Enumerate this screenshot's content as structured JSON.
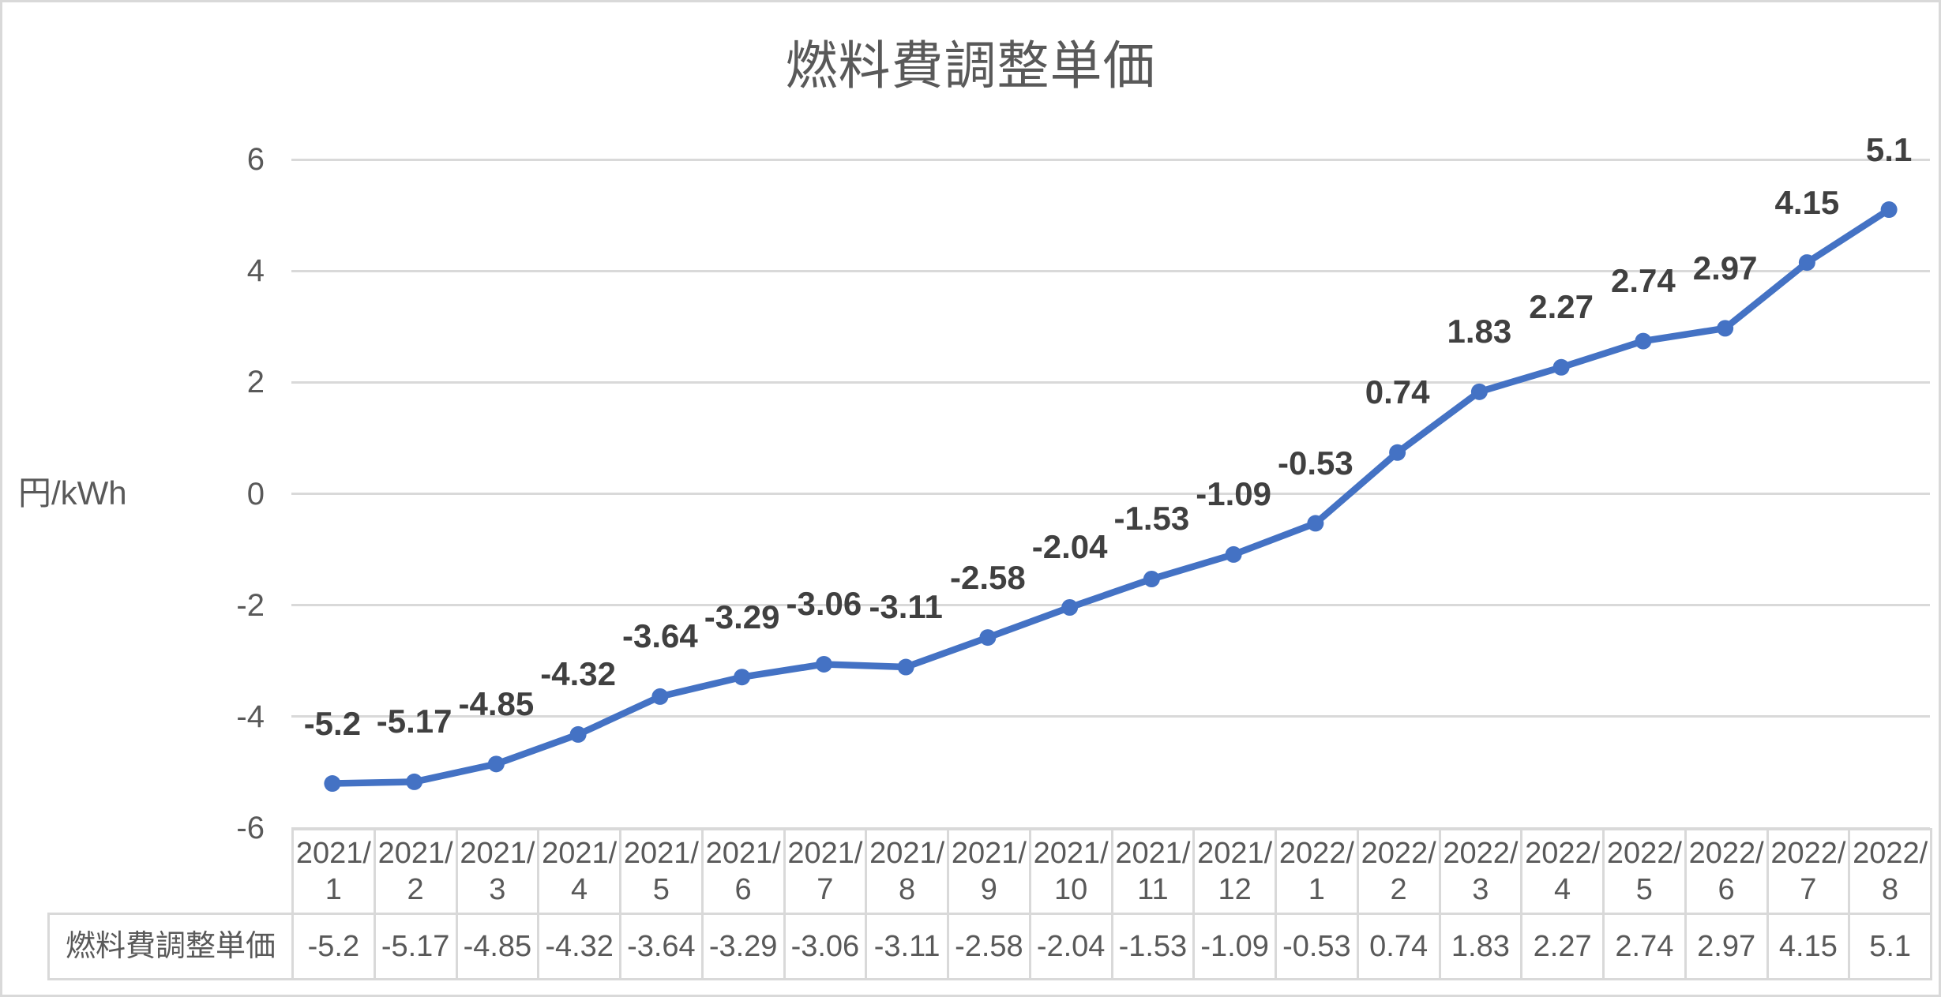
{
  "chart_data": {
    "type": "line",
    "title": "燃料費調整単価",
    "ylabel": "円/kWh",
    "categories": [
      "2021/1",
      "2021/2",
      "2021/3",
      "2021/4",
      "2021/5",
      "2021/6",
      "2021/7",
      "2021/8",
      "2021/9",
      "2021/10",
      "2021/11",
      "2021/12",
      "2022/1",
      "2022/2",
      "2022/3",
      "2022/4",
      "2022/5",
      "2022/6",
      "2022/7",
      "2022/8"
    ],
    "series": [
      {
        "name": "燃料費調整単価",
        "values": [
          -5.2,
          -5.17,
          -4.85,
          -4.32,
          -3.64,
          -3.29,
          -3.06,
          -3.11,
          -2.58,
          -2.04,
          -1.53,
          -1.09,
          -0.53,
          0.74,
          1.83,
          2.27,
          2.74,
          2.97,
          4.15,
          5.1
        ]
      }
    ],
    "ylim": [
      -6,
      6
    ],
    "yticks": [
      6,
      4,
      2,
      0,
      -2,
      -4,
      -6
    ],
    "grid": true,
    "data_labels": "above each point",
    "legend_position": "none (data table below axis)"
  },
  "table": {
    "row_header": "燃料費調整単価",
    "columns": [
      "2021/1",
      "2021/2",
      "2021/3",
      "2021/4",
      "2021/5",
      "2021/6",
      "2021/7",
      "2021/8",
      "2021/9",
      "2021/10",
      "2021/11",
      "2021/12",
      "2022/1",
      "2022/2",
      "2022/3",
      "2022/4",
      "2022/5",
      "2022/6",
      "2022/7",
      "2022/8"
    ],
    "values": [
      "-5.2",
      "-5.17",
      "-4.85",
      "-4.32",
      "-3.64",
      "-3.29",
      "-3.06",
      "-3.11",
      "-2.58",
      "-2.04",
      "-1.53",
      "-1.09",
      "-0.53",
      "0.74",
      "1.83",
      "2.27",
      "2.74",
      "2.97",
      "4.15",
      "5.1"
    ]
  },
  "colors": {
    "line": "#4472C4",
    "marker": "#4472C4",
    "gridline": "#D9D9D9",
    "table_border": "#D9D9D9",
    "axis_text": "#595959",
    "table_text": "#595959",
    "title_text": "#595959",
    "data_label_text": "#404040",
    "background": "#FFFFFF"
  }
}
